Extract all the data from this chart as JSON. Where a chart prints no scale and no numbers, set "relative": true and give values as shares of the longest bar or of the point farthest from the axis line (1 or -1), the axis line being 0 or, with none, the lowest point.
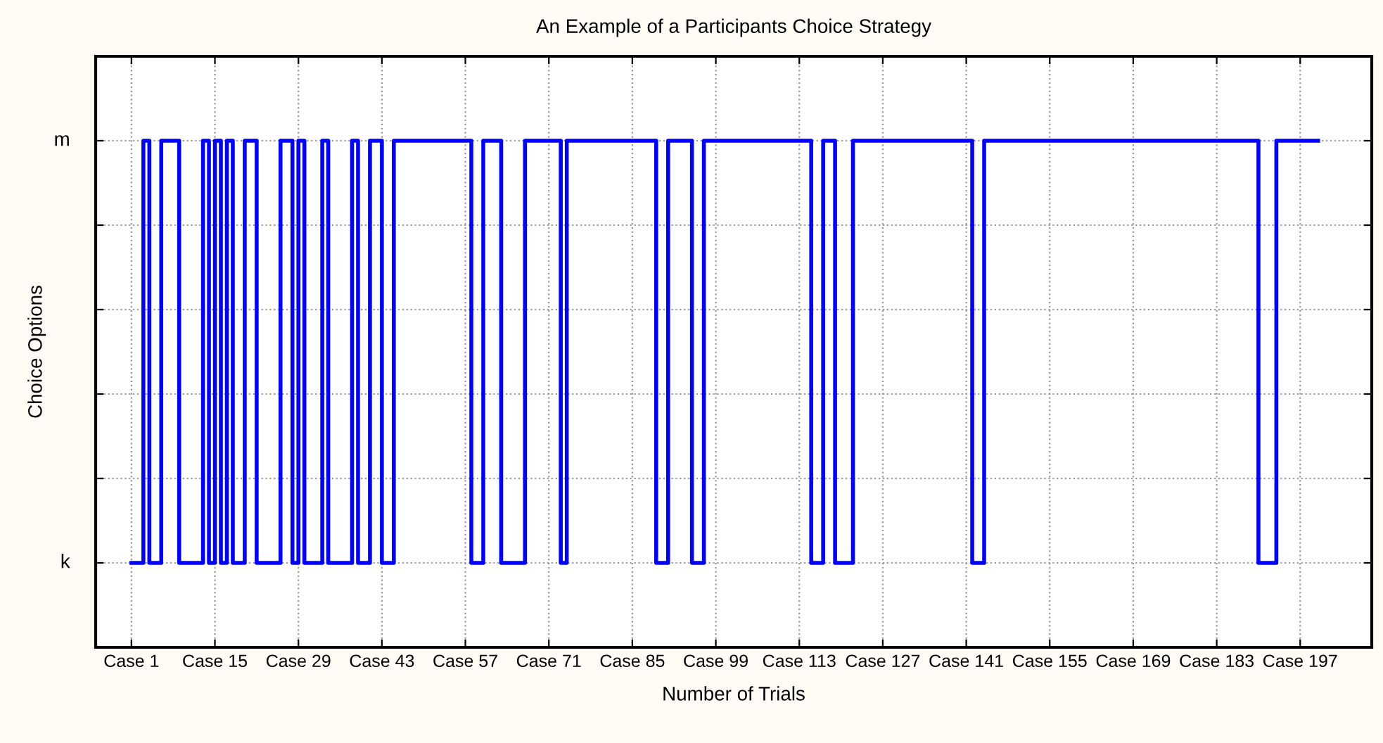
{
  "chart_data": {
    "type": "step",
    "title": "An Example of a Participants Choice Strategy",
    "xlabel": "Number of Trials",
    "ylabel": "Choice Options",
    "relative": true,
    "categories": [
      "Case 1",
      null,
      null,
      null,
      null,
      null,
      null,
      null,
      null,
      null,
      null,
      null,
      null,
      null,
      "Case 15",
      null,
      null,
      null,
      null,
      null,
      null,
      null,
      null,
      null,
      null,
      null,
      null,
      null,
      "Case 29",
      null,
      null,
      null,
      null,
      null,
      null,
      null,
      null,
      null,
      null,
      null,
      null,
      null,
      "Case 43",
      null,
      null,
      null,
      null,
      null,
      null,
      null,
      null,
      null,
      null,
      null,
      null,
      null,
      "Case 57",
      null,
      null,
      null,
      null,
      null,
      null,
      null,
      null,
      null,
      null,
      null,
      null,
      null,
      "Case 71",
      null,
      null,
      null,
      null,
      null,
      null,
      null,
      null,
      null,
      null,
      null,
      null,
      null,
      "Case 85",
      null,
      null,
      null,
      null,
      null,
      null,
      null,
      null,
      null,
      null,
      null,
      null,
      null,
      "Case 99",
      null,
      null,
      null,
      null,
      null,
      null,
      null,
      null,
      null,
      null,
      null,
      null,
      null,
      "Case 113",
      null,
      null,
      null,
      null,
      null,
      null,
      null,
      null,
      null,
      null,
      null,
      null,
      null,
      "Case 127",
      null,
      null,
      null,
      null,
      null,
      null,
      null,
      null,
      null,
      null,
      null,
      null,
      null,
      "Case 141",
      null,
      null,
      null,
      null,
      null,
      null,
      null,
      null,
      null,
      null,
      null,
      null,
      null,
      "Case 155",
      null,
      null,
      null,
      null,
      null,
      null,
      null,
      null,
      null,
      null,
      null,
      null,
      null,
      "Case 169",
      null,
      null,
      null,
      null,
      null,
      null,
      null,
      null,
      null,
      null,
      null,
      null,
      null,
      "Case 183",
      null,
      null,
      null,
      null,
      null,
      null,
      null,
      null,
      null,
      null,
      null,
      null,
      null,
      "Case 197",
      null,
      null,
      null
    ],
    "series": [
      {
        "color": "#0000ff",
        "values": [
          0,
          0,
          1,
          0,
          0,
          1,
          1,
          1,
          0,
          0,
          0,
          0,
          1,
          0,
          1,
          0,
          1,
          0,
          0,
          1,
          1,
          0,
          0,
          0,
          0,
          1,
          1,
          0,
          1,
          0,
          0,
          0,
          1,
          0,
          0,
          0,
          0,
          1,
          0,
          0,
          1,
          1,
          0,
          0,
          1,
          1,
          1,
          1,
          1,
          1,
          1,
          1,
          1,
          1,
          1,
          1,
          1,
          0,
          0,
          1,
          1,
          1,
          0,
          0,
          0,
          0,
          1,
          1,
          1,
          1,
          1,
          1,
          0,
          1,
          1,
          1,
          1,
          1,
          1,
          1,
          1,
          1,
          1,
          1,
          1,
          1,
          1,
          1,
          0,
          0,
          1,
          1,
          1,
          1,
          0,
          0,
          1,
          1,
          1,
          1,
          1,
          1,
          1,
          1,
          1,
          1,
          1,
          1,
          1,
          1,
          1,
          1,
          1,
          1,
          0,
          0,
          1,
          1,
          0,
          0,
          0,
          1,
          1,
          1,
          1,
          1,
          1,
          1,
          1,
          1,
          1,
          1,
          1,
          1,
          1,
          1,
          1,
          1,
          1,
          1,
          1,
          0,
          0,
          1,
          1,
          1,
          1,
          1,
          1,
          1,
          1,
          1,
          1,
          1,
          1,
          1,
          1,
          1,
          1,
          1,
          1,
          1,
          1,
          1,
          1,
          1,
          1,
          1,
          1,
          1,
          1,
          1,
          1,
          1,
          1,
          1,
          1,
          1,
          1,
          1,
          1,
          1,
          1,
          1,
          1,
          1,
          1,
          1,
          1,
          0,
          0,
          0,
          1,
          1,
          1,
          1,
          1,
          1,
          1,
          1
        ]
      }
    ],
    "annotations": [
      "k",
      "m"
    ],
    "grid": true,
    "line_style": "solid",
    "marker": "none"
  }
}
